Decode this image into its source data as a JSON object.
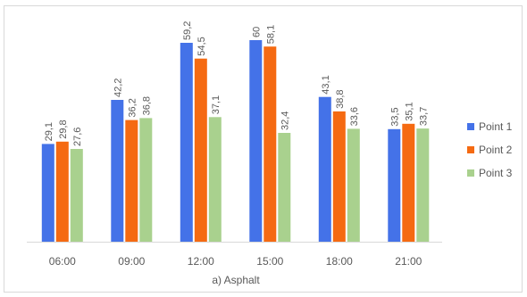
{
  "chart_data": {
    "type": "bar",
    "categories": [
      "06:00",
      "09:00",
      "12:00",
      "15:00",
      "18:00",
      "21:00"
    ],
    "series": [
      {
        "name": "Point 1",
        "color": "#4472e8",
        "values": [
          29.1,
          42.2,
          59.2,
          60,
          43.1,
          33.5
        ],
        "labels": [
          "29,1",
          "42,2",
          "59,2",
          "60",
          "43,1",
          "33,5"
        ]
      },
      {
        "name": "Point 2",
        "color": "#f56a12",
        "values": [
          29.8,
          36.2,
          54.5,
          58.1,
          38.8,
          35.1
        ],
        "labels": [
          "29,8",
          "36,2",
          "54,5",
          "58,1",
          "38,8",
          "35,1"
        ]
      },
      {
        "name": "Point 3",
        "color": "#a9d18e",
        "values": [
          27.6,
          36.8,
          37.1,
          32.4,
          33.6,
          33.7
        ],
        "labels": [
          "27,6",
          "36,8",
          "37,1",
          "32,4",
          "33,6",
          "33,7"
        ]
      }
    ],
    "caption": "a) Asphalt",
    "ylim": [
      0,
      65
    ],
    "grid": false,
    "legend_position": "right"
  }
}
